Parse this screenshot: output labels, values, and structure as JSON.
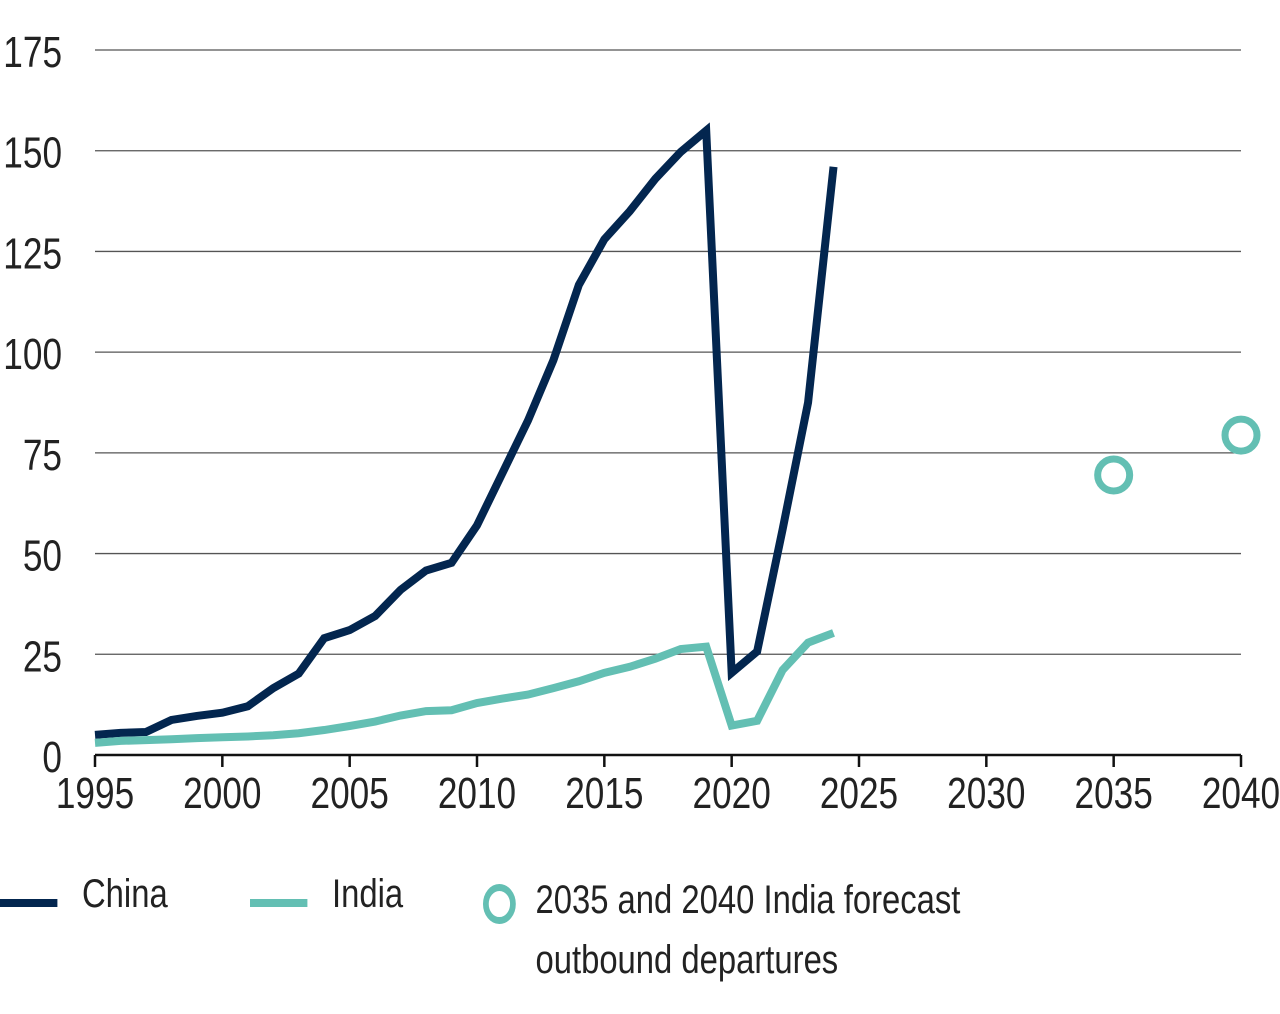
{
  "chart_data": {
    "type": "line",
    "title": "",
    "xlabel": "",
    "ylabel": "",
    "xlim": [
      1995,
      2040
    ],
    "ylim": [
      0,
      175
    ],
    "x_ticks": [
      "1995",
      "2000",
      "2005",
      "2010",
      "2015",
      "2020",
      "2025",
      "2030",
      "2035",
      "2040"
    ],
    "y_ticks": [
      "0",
      "25",
      "50",
      "75",
      "100",
      "125",
      "150",
      "175"
    ],
    "grid": "horizontal",
    "legend_position": "bottom",
    "x": [
      1995,
      1996,
      1997,
      1998,
      1999,
      2000,
      2001,
      2002,
      2003,
      2004,
      2005,
      2006,
      2007,
      2008,
      2009,
      2010,
      2011,
      2012,
      2013,
      2014,
      2015,
      2016,
      2017,
      2018,
      2019,
      2020,
      2021,
      2022,
      2023,
      2024
    ],
    "series": [
      {
        "name": "China",
        "color": "#03264f",
        "values": [
          5,
          5.5,
          5.7,
          8.7,
          9.7,
          10.5,
          12.1,
          16.6,
          20.2,
          29,
          31,
          34.5,
          41,
          45.8,
          47.7,
          57,
          70,
          83,
          98,
          116.7,
          128,
          135,
          143,
          149.7,
          155,
          20.4,
          25.7,
          56,
          87.5,
          146
        ]
      },
      {
        "name": "India",
        "color": "#63bfb3",
        "values": [
          3,
          3.5,
          3.7,
          3.9,
          4.2,
          4.4,
          4.6,
          4.9,
          5.4,
          6.2,
          7.2,
          8.3,
          9.8,
          10.9,
          11.1,
          12.9,
          14,
          15,
          16.6,
          18.3,
          20.4,
          21.9,
          23.9,
          26.3,
          26.9,
          7.3,
          8.5,
          21.1,
          27.9,
          30.3
        ]
      }
    ],
    "forecast": {
      "name": "2035 and 2040 India forecast outbound departures",
      "name_line1": "2035 and 2040 India forecast",
      "name_line2": "outbound departures",
      "color": "#63bfb3",
      "points": [
        {
          "x": 2035,
          "y": 69.5
        },
        {
          "x": 2040,
          "y": 79.4
        }
      ]
    }
  }
}
